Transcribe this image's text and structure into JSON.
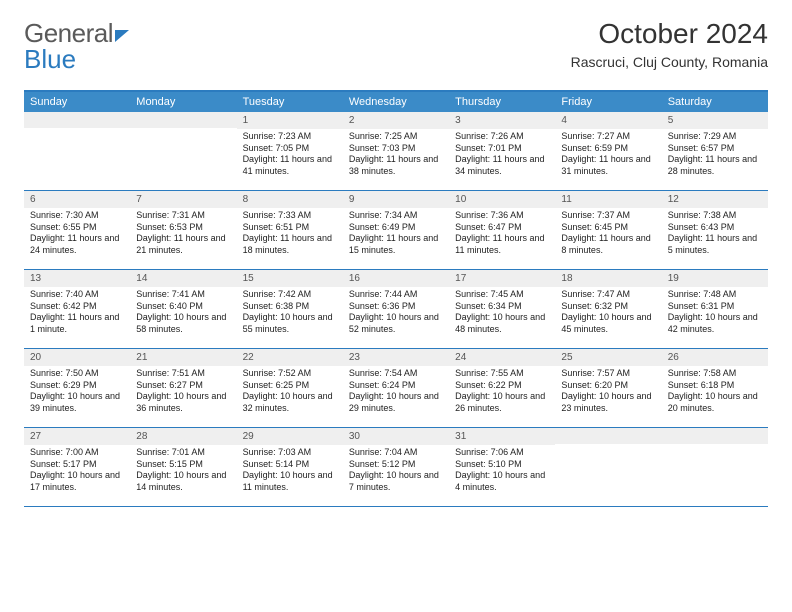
{
  "brand": {
    "part1": "General",
    "part2": "Blue"
  },
  "title": "October 2024",
  "location": "Rascruci, Cluj County, Romania",
  "day_header_bg": "#3B8BC8",
  "accent": "#2B7BBF",
  "daynames": [
    "Sunday",
    "Monday",
    "Tuesday",
    "Wednesday",
    "Thursday",
    "Friday",
    "Saturday"
  ],
  "weeks": [
    [
      {
        "n": "",
        "sr": "",
        "ss": "",
        "dl": ""
      },
      {
        "n": "",
        "sr": "",
        "ss": "",
        "dl": ""
      },
      {
        "n": "1",
        "sr": "Sunrise: 7:23 AM",
        "ss": "Sunset: 7:05 PM",
        "dl": "Daylight: 11 hours and 41 minutes."
      },
      {
        "n": "2",
        "sr": "Sunrise: 7:25 AM",
        "ss": "Sunset: 7:03 PM",
        "dl": "Daylight: 11 hours and 38 minutes."
      },
      {
        "n": "3",
        "sr": "Sunrise: 7:26 AM",
        "ss": "Sunset: 7:01 PM",
        "dl": "Daylight: 11 hours and 34 minutes."
      },
      {
        "n": "4",
        "sr": "Sunrise: 7:27 AM",
        "ss": "Sunset: 6:59 PM",
        "dl": "Daylight: 11 hours and 31 minutes."
      },
      {
        "n": "5",
        "sr": "Sunrise: 7:29 AM",
        "ss": "Sunset: 6:57 PM",
        "dl": "Daylight: 11 hours and 28 minutes."
      }
    ],
    [
      {
        "n": "6",
        "sr": "Sunrise: 7:30 AM",
        "ss": "Sunset: 6:55 PM",
        "dl": "Daylight: 11 hours and 24 minutes."
      },
      {
        "n": "7",
        "sr": "Sunrise: 7:31 AM",
        "ss": "Sunset: 6:53 PM",
        "dl": "Daylight: 11 hours and 21 minutes."
      },
      {
        "n": "8",
        "sr": "Sunrise: 7:33 AM",
        "ss": "Sunset: 6:51 PM",
        "dl": "Daylight: 11 hours and 18 minutes."
      },
      {
        "n": "9",
        "sr": "Sunrise: 7:34 AM",
        "ss": "Sunset: 6:49 PM",
        "dl": "Daylight: 11 hours and 15 minutes."
      },
      {
        "n": "10",
        "sr": "Sunrise: 7:36 AM",
        "ss": "Sunset: 6:47 PM",
        "dl": "Daylight: 11 hours and 11 minutes."
      },
      {
        "n": "11",
        "sr": "Sunrise: 7:37 AM",
        "ss": "Sunset: 6:45 PM",
        "dl": "Daylight: 11 hours and 8 minutes."
      },
      {
        "n": "12",
        "sr": "Sunrise: 7:38 AM",
        "ss": "Sunset: 6:43 PM",
        "dl": "Daylight: 11 hours and 5 minutes."
      }
    ],
    [
      {
        "n": "13",
        "sr": "Sunrise: 7:40 AM",
        "ss": "Sunset: 6:42 PM",
        "dl": "Daylight: 11 hours and 1 minute."
      },
      {
        "n": "14",
        "sr": "Sunrise: 7:41 AM",
        "ss": "Sunset: 6:40 PM",
        "dl": "Daylight: 10 hours and 58 minutes."
      },
      {
        "n": "15",
        "sr": "Sunrise: 7:42 AM",
        "ss": "Sunset: 6:38 PM",
        "dl": "Daylight: 10 hours and 55 minutes."
      },
      {
        "n": "16",
        "sr": "Sunrise: 7:44 AM",
        "ss": "Sunset: 6:36 PM",
        "dl": "Daylight: 10 hours and 52 minutes."
      },
      {
        "n": "17",
        "sr": "Sunrise: 7:45 AM",
        "ss": "Sunset: 6:34 PM",
        "dl": "Daylight: 10 hours and 48 minutes."
      },
      {
        "n": "18",
        "sr": "Sunrise: 7:47 AM",
        "ss": "Sunset: 6:32 PM",
        "dl": "Daylight: 10 hours and 45 minutes."
      },
      {
        "n": "19",
        "sr": "Sunrise: 7:48 AM",
        "ss": "Sunset: 6:31 PM",
        "dl": "Daylight: 10 hours and 42 minutes."
      }
    ],
    [
      {
        "n": "20",
        "sr": "Sunrise: 7:50 AM",
        "ss": "Sunset: 6:29 PM",
        "dl": "Daylight: 10 hours and 39 minutes."
      },
      {
        "n": "21",
        "sr": "Sunrise: 7:51 AM",
        "ss": "Sunset: 6:27 PM",
        "dl": "Daylight: 10 hours and 36 minutes."
      },
      {
        "n": "22",
        "sr": "Sunrise: 7:52 AM",
        "ss": "Sunset: 6:25 PM",
        "dl": "Daylight: 10 hours and 32 minutes."
      },
      {
        "n": "23",
        "sr": "Sunrise: 7:54 AM",
        "ss": "Sunset: 6:24 PM",
        "dl": "Daylight: 10 hours and 29 minutes."
      },
      {
        "n": "24",
        "sr": "Sunrise: 7:55 AM",
        "ss": "Sunset: 6:22 PM",
        "dl": "Daylight: 10 hours and 26 minutes."
      },
      {
        "n": "25",
        "sr": "Sunrise: 7:57 AM",
        "ss": "Sunset: 6:20 PM",
        "dl": "Daylight: 10 hours and 23 minutes."
      },
      {
        "n": "26",
        "sr": "Sunrise: 7:58 AM",
        "ss": "Sunset: 6:18 PM",
        "dl": "Daylight: 10 hours and 20 minutes."
      }
    ],
    [
      {
        "n": "27",
        "sr": "Sunrise: 7:00 AM",
        "ss": "Sunset: 5:17 PM",
        "dl": "Daylight: 10 hours and 17 minutes."
      },
      {
        "n": "28",
        "sr": "Sunrise: 7:01 AM",
        "ss": "Sunset: 5:15 PM",
        "dl": "Daylight: 10 hours and 14 minutes."
      },
      {
        "n": "29",
        "sr": "Sunrise: 7:03 AM",
        "ss": "Sunset: 5:14 PM",
        "dl": "Daylight: 10 hours and 11 minutes."
      },
      {
        "n": "30",
        "sr": "Sunrise: 7:04 AM",
        "ss": "Sunset: 5:12 PM",
        "dl": "Daylight: 10 hours and 7 minutes."
      },
      {
        "n": "31",
        "sr": "Sunrise: 7:06 AM",
        "ss": "Sunset: 5:10 PM",
        "dl": "Daylight: 10 hours and 4 minutes."
      },
      {
        "n": "",
        "sr": "",
        "ss": "",
        "dl": ""
      },
      {
        "n": "",
        "sr": "",
        "ss": "",
        "dl": ""
      }
    ]
  ]
}
